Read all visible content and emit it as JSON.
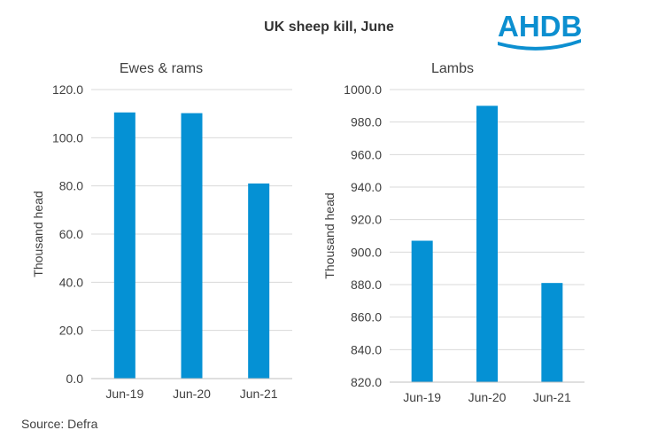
{
  "title": "UK sheep kill, June",
  "source": "Source: Defra",
  "logo_text": "AHDB",
  "colors": {
    "bar": "#0591D4",
    "grid": "#D9D9D9",
    "axis": "#BFBFBF",
    "text": "#404040",
    "logo": "#0C8FD0"
  },
  "chart_data": [
    {
      "type": "bar",
      "title": "Ewes & rams",
      "ylabel": "Thousand head",
      "categories": [
        "Jun-19",
        "Jun-20",
        "Jun-21"
      ],
      "values": [
        110.5,
        110.2,
        81.0
      ],
      "ylim": [
        0,
        120
      ],
      "yticks": [
        "0.0",
        "20.0",
        "40.0",
        "60.0",
        "80.0",
        "100.0",
        "120.0"
      ],
      "grid": true
    },
    {
      "type": "bar",
      "title": "Lambs",
      "ylabel": "Thousand head",
      "categories": [
        "Jun-19",
        "Jun-20",
        "Jun-21"
      ],
      "values": [
        907,
        990,
        881
      ],
      "ylim": [
        820,
        1000
      ],
      "yticks": [
        "820.0",
        "840.0",
        "860.0",
        "880.0",
        "900.0",
        "920.0",
        "940.0",
        "960.0",
        "980.0",
        "1000.0"
      ],
      "grid": true
    }
  ]
}
